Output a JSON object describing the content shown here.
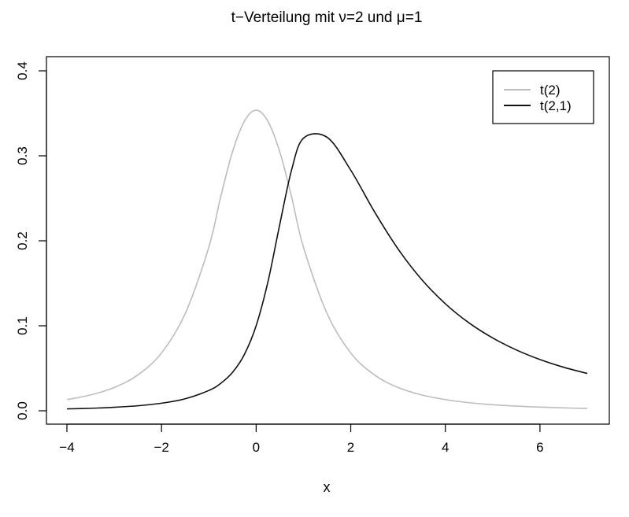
{
  "chart_data": {
    "type": "line",
    "title": "t−Verteilung mit ν=2 und μ=1",
    "xlabel": "x",
    "ylabel": "",
    "xlim": [
      -4,
      7
    ],
    "ylim": [
      0,
      0.4
    ],
    "xticks": [
      -4,
      -2,
      0,
      2,
      4,
      6
    ],
    "xtick_labels": [
      "−4",
      "−2",
      "0",
      "2",
      "4",
      "6"
    ],
    "yticks": [
      0,
      0.1,
      0.2,
      0.3,
      0.4
    ],
    "ytick_labels": [
      "0.0",
      "0.1",
      "0.2",
      "0.3",
      "0.4"
    ],
    "grid": false,
    "legend_position": "top-right",
    "series": [
      {
        "name": "t(2)",
        "color": "#bdbdbd",
        "x": [
          -4,
          -3.5,
          -3,
          -2.5,
          -2,
          -1.5,
          -1,
          -0.75,
          -0.5,
          -0.25,
          0,
          0.25,
          0.5,
          0.75,
          1,
          1.5,
          2,
          2.5,
          3,
          3.5,
          4,
          4.5,
          5,
          5.5,
          6,
          6.5,
          7
        ],
        "values": [
          0.0131,
          0.0186,
          0.0274,
          0.0422,
          0.068,
          0.1143,
          0.1925,
          0.2516,
          0.3046,
          0.3405,
          0.3536,
          0.3405,
          0.3046,
          0.2516,
          0.1925,
          0.1143,
          0.068,
          0.0422,
          0.0274,
          0.0186,
          0.0131,
          0.0095,
          0.0071,
          0.0055,
          0.0043,
          0.0034,
          0.0027
        ]
      },
      {
        "name": "t(2,1)",
        "color": "#111111",
        "x": [
          -4,
          -3.5,
          -3,
          -2.5,
          -2,
          -1.5,
          -1,
          -0.75,
          -0.5,
          -0.25,
          0,
          0.25,
          0.5,
          0.75,
          1,
          1.5,
          2,
          2.5,
          3,
          3.5,
          4,
          4.5,
          5,
          5.5,
          6,
          6.5,
          7
        ],
        "values": [
          0.0022,
          0.0029,
          0.0041,
          0.0059,
          0.0089,
          0.0141,
          0.0239,
          0.0322,
          0.0451,
          0.0661,
          0.1,
          0.1519,
          0.2194,
          0.2835,
          0.3207,
          0.3218,
          0.2831,
          0.2343,
          0.1904,
          0.1544,
          0.1259,
          0.1034,
          0.0857,
          0.0716,
          0.0603,
          0.0512,
          0.0439
        ]
      }
    ]
  }
}
